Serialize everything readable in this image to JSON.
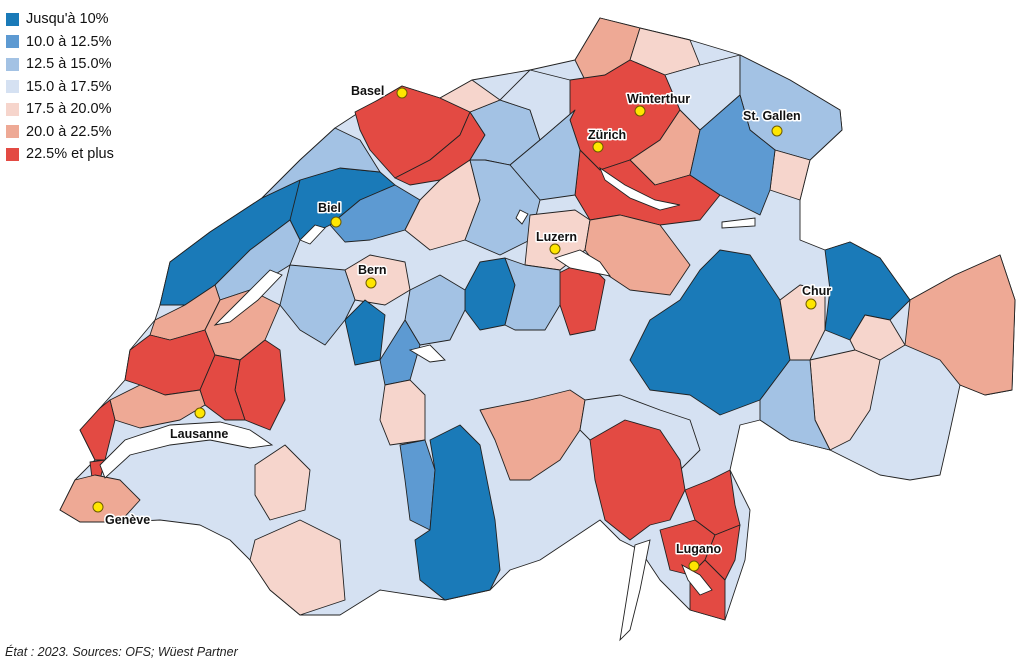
{
  "colors": {
    "c1": "#1a7ab8",
    "c2": "#5d9ad2",
    "c3": "#a3c2e4",
    "c4": "#d5e1f2",
    "c5": "#f6d5cc",
    "c6": "#eea995",
    "c7": "#e34a43"
  },
  "legend": [
    {
      "label": "Jusqu'à 10%",
      "color": "#1a7ab8"
    },
    {
      "label": "10.0 à 12.5%",
      "color": "#5d9ad2"
    },
    {
      "label": "12.5 à 15.0%",
      "color": "#a3c2e4"
    },
    {
      "label": "15.0 à 17.5%",
      "color": "#d5e1f2"
    },
    {
      "label": "17.5 à 20.0%",
      "color": "#f6d5cc"
    },
    {
      "label": "20.0 à 22.5%",
      "color": "#eea995"
    },
    {
      "label": "22.5% et plus",
      "color": "#e34a43"
    }
  ],
  "cities": {
    "basel": "Basel",
    "winterthur": "Winterthur",
    "zurich": "Zürich",
    "st_gallen": "St. Gallen",
    "biel": "Biel",
    "luzern": "Luzern",
    "bern": "Bern",
    "chur": "Chur",
    "lausanne": "Lausanne",
    "geneve": "Genève",
    "lugano": "Lugano"
  },
  "source": "État : 2023. Sources: OFS; Wüest Partner"
}
